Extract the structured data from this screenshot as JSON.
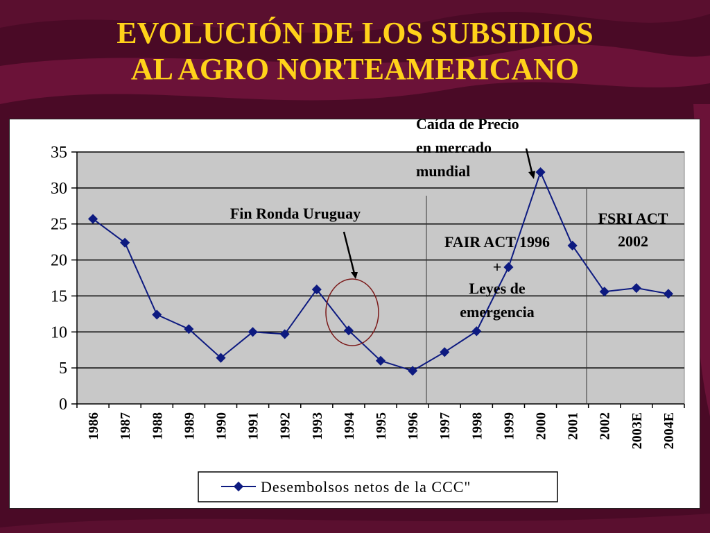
{
  "title_lines": [
    "EVOLUCIÓN DE LOS SUBSIDIOS",
    "AL AGRO NORTEAMERICANO"
  ],
  "chart_data": {
    "type": "line",
    "title": "EVOLUCIÓN DE LOS SUBSIDIOS AL AGRO NORTEAMERICANO",
    "xlabel": "",
    "ylabel": "",
    "categories": [
      "1986",
      "1987",
      "1988",
      "1989",
      "1990",
      "1991",
      "1992",
      "1993",
      "1994",
      "1995",
      "1996",
      "1997",
      "1998",
      "1999",
      "2000",
      "2001",
      "2002",
      "2003E",
      "2004E"
    ],
    "series": [
      {
        "name": "Desembolsos netos de la CCC\"",
        "color": "#0d1a80",
        "values": [
          25.7,
          22.4,
          12.4,
          10.4,
          6.4,
          10.0,
          9.7,
          15.9,
          10.2,
          6.0,
          4.6,
          7.2,
          10.1,
          19.0,
          32.2,
          22.0,
          15.6,
          16.1,
          15.3
        ]
      }
    ],
    "ylim": [
      0,
      35
    ],
    "yticks": [
      0,
      5,
      10,
      15,
      20,
      25,
      30,
      35
    ],
    "grid": true,
    "legend_position": "bottom",
    "annotations": {
      "fin_ronda": "Fin Ronda Uruguay",
      "fair_act": [
        "FAIR ACT 1996",
        "+",
        "Leyes de",
        "emergencia"
      ],
      "fsri_act": [
        "FSRI ACT",
        "2002"
      ],
      "caida": [
        "Caída de Precio",
        "en mercado",
        "mundial"
      ]
    }
  },
  "colors": {
    "background": "#4a0a26",
    "title": "#ffd21a",
    "plot_area": "#c8c8c8",
    "line": "#0d1a80",
    "circle": "#7a1818"
  }
}
